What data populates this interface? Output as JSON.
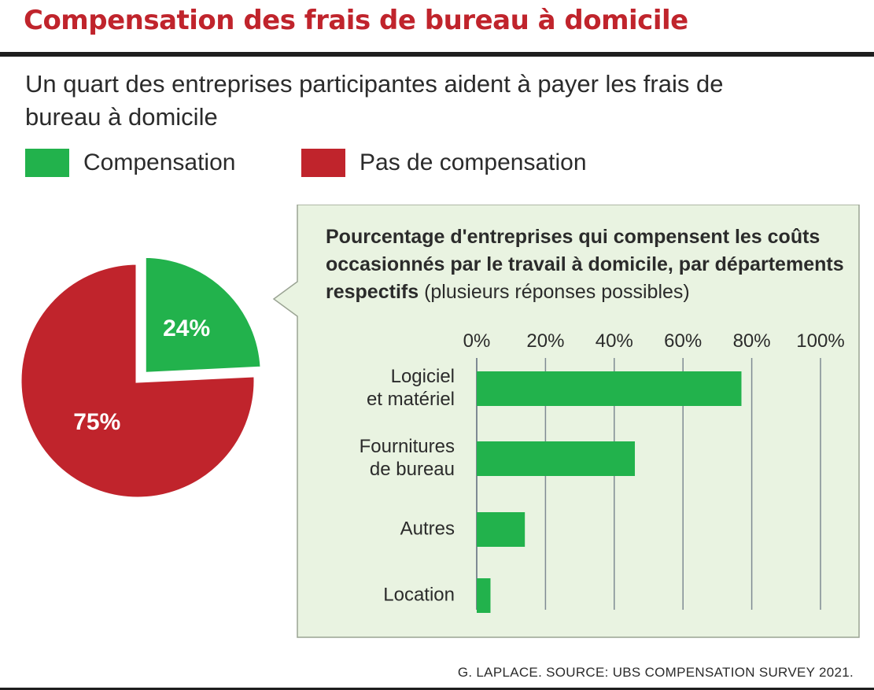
{
  "title": "Compensation des frais de bureau à domicile",
  "subtitle": "Un quart des entreprises participantes aident à payer les frais de bureau à domicile",
  "legend": [
    {
      "label": "Compensation",
      "color": "#22b24c"
    },
    {
      "label": "Pas de compensation",
      "color": "#c0242c"
    }
  ],
  "panel": {
    "title_bold": "Pourcentage d'entreprises qui compensent les coûts occasionnés par le travail à domicile, par départe­ments respectifs",
    "title_regular": "(plusieurs réponses possibles)"
  },
  "credit": "G. LAPLACE. SOURCE: UBS COMPENSATION SURVEY 2021.",
  "colors": {
    "accent": "#c0242c",
    "green": "#22b24c",
    "red": "#c0242c",
    "panel_bg": "#e9f3e1",
    "panel_border": "#9aa393",
    "grid": "#7f8a93"
  },
  "chart_data": [
    {
      "type": "pie",
      "slices": [
        {
          "label": "Compensation",
          "value": 24,
          "display": "24%",
          "color": "#22b24c",
          "exploded": true
        },
        {
          "label": "Pas de compensation",
          "value": 75,
          "display": "75%",
          "color": "#c0242c",
          "exploded": false
        }
      ]
    },
    {
      "type": "bar",
      "orientation": "horizontal",
      "categories": [
        [
          "Logiciel",
          "et matériel"
        ],
        [
          "Fournitures",
          "de bureau"
        ],
        [
          "Autres"
        ],
        [
          "Location"
        ]
      ],
      "values": [
        77,
        46,
        14,
        4
      ],
      "xlim": [
        0,
        100
      ],
      "ticks": [
        0,
        20,
        40,
        60,
        80,
        100
      ],
      "tick_labels": [
        "0%",
        "20%",
        "40%",
        "60%",
        "80%",
        "100%"
      ],
      "grid": true,
      "bar_color": "#22b24c"
    }
  ]
}
